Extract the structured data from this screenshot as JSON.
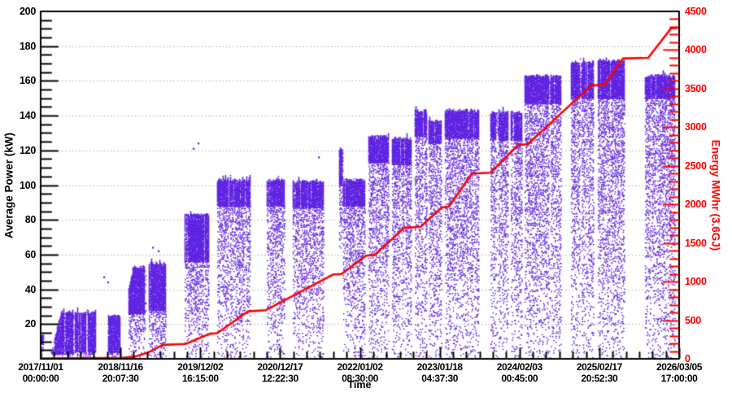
{
  "chart_data": {
    "type": "scatter",
    "title": "",
    "xlabel": "Time",
    "ylabel_left": "Average Power (kW)",
    "ylabel_right": "Energy MWhr (3.6GJ)",
    "grid": {
      "horizontal_dotted": true,
      "vertical": false,
      "color": "#a8a8a8"
    },
    "colors": {
      "scatter": "#5a1ce0",
      "energy_line": "#ff0000",
      "axis": "#000000",
      "right_axis": "#ff0000"
    },
    "x_axis": {
      "minor_divisions_per_interval": 6,
      "ticks": [
        {
          "pos": 0.0,
          "date": "2017/11/01",
          "time": "00:00:00"
        },
        {
          "pos": 0.125,
          "date": "2018/11/16",
          "time": "20:07:30"
        },
        {
          "pos": 0.25,
          "date": "2019/12/02",
          "time": "16:15:00"
        },
        {
          "pos": 0.375,
          "date": "2020/12/17",
          "time": "12:22:30"
        },
        {
          "pos": 0.5,
          "date": "2022/01/02",
          "time": "08:30:00"
        },
        {
          "pos": 0.625,
          "date": "2023/01/18",
          "time": "04:37:30"
        },
        {
          "pos": 0.75,
          "date": "2024/02/03",
          "time": "00:45:00"
        },
        {
          "pos": 0.875,
          "date": "2025/02/17",
          "time": "20:52:30"
        },
        {
          "pos": 1.0,
          "date": "2026/03/05",
          "time": "17:00:00"
        }
      ]
    },
    "y_axis_left": {
      "min": 0,
      "max": 200,
      "major_step": 20,
      "minor_step": 5,
      "tick_values": [
        20,
        40,
        60,
        80,
        100,
        120,
        140,
        160,
        180,
        200
      ],
      "tick_labels": [
        "20",
        "40",
        "60",
        "80",
        "100",
        "120",
        "140",
        "160",
        "180",
        "200"
      ]
    },
    "y_axis_right": {
      "min": 0,
      "max": 4500,
      "major_step": 500,
      "minor_step": 100,
      "tick_values": [
        0,
        500,
        1000,
        1500,
        2000,
        2500,
        3000,
        3500,
        4000,
        4500
      ],
      "tick_labels": [
        "0",
        "500",
        "1000",
        "1500",
        "2000",
        "2500",
        "3000",
        "3500",
        "4000",
        "4500"
      ]
    },
    "band_fields": [
      "x0_frac",
      "x1_frac",
      "top_kw",
      "dense_to_kw",
      "sparse_to_kw",
      "ramp_w_frac",
      "ramp_from_kw"
    ],
    "power_bands": [
      [
        0.0013,
        0.0051,
        14,
        9,
        0,
        0,
        0
      ],
      [
        0.0166,
        0.051,
        27,
        3,
        0,
        0.0153,
        5
      ],
      [
        0.0535,
        0.0701,
        27,
        4,
        0,
        0,
        0
      ],
      [
        0.0726,
        0.0866,
        27,
        4,
        0,
        0,
        0
      ],
      [
        0.1057,
        0.1248,
        25,
        4,
        0,
        0,
        0
      ],
      [
        0.1376,
        0.1529,
        53,
        26,
        0,
        0.0076,
        40
      ],
      [
        0.1541,
        0.1643,
        53,
        26,
        0,
        0,
        0
      ],
      [
        0.1694,
        0.1949,
        55,
        28,
        0,
        0,
        0
      ],
      [
        0.2255,
        0.2637,
        83,
        56,
        0,
        0,
        0
      ],
      [
        0.2764,
        0.293,
        103,
        88,
        0,
        0,
        0
      ],
      [
        0.2955,
        0.3274,
        103,
        88,
        0,
        0,
        0
      ],
      [
        0.3541,
        0.3809,
        103,
        88,
        0,
        0,
        0
      ],
      [
        0.3949,
        0.4433,
        102,
        87,
        0,
        0,
        0
      ],
      [
        0.4675,
        0.4738,
        121,
        100,
        60,
        0,
        0
      ],
      [
        0.4738,
        0.507,
        103,
        88,
        0,
        0,
        0
      ],
      [
        0.5134,
        0.5452,
        128,
        113,
        0,
        0,
        0
      ],
      [
        0.5503,
        0.5796,
        127,
        112,
        0,
        0,
        0
      ],
      [
        0.586,
        0.6051,
        143,
        128,
        0,
        0,
        0
      ],
      [
        0.6076,
        0.6268,
        137,
        124,
        0,
        0,
        0
      ],
      [
        0.6331,
        0.6854,
        143,
        127,
        0,
        0,
        0
      ],
      [
        0.7045,
        0.7325,
        142,
        126,
        0,
        0,
        0
      ],
      [
        0.7363,
        0.7541,
        142,
        126,
        0,
        0,
        0
      ],
      [
        0.758,
        0.8153,
        163,
        147,
        0,
        0,
        0
      ],
      [
        0.8306,
        0.8662,
        171,
        150,
        0,
        0,
        0
      ],
      [
        0.8726,
        0.9146,
        172,
        150,
        0,
        0,
        0
      ],
      [
        0.9465,
        0.9936,
        163,
        150,
        0,
        0,
        0
      ]
    ],
    "outlier_points_kw": [
      [
        0.0994,
        47
      ],
      [
        0.1057,
        44
      ],
      [
        0.1758,
        64
      ],
      [
        0.1847,
        62
      ],
      [
        0.2395,
        121
      ],
      [
        0.2471,
        124
      ],
      [
        0.4357,
        116
      ]
    ],
    "energy_line": {
      "unit": "MWhr",
      "points": [
        [
          0.0,
          5
        ],
        [
          0.1274,
          12
        ],
        [
          0.1465,
          25
        ],
        [
          0.1694,
          85
        ],
        [
          0.1911,
          180
        ],
        [
          0.2268,
          192
        ],
        [
          0.265,
          325
        ],
        [
          0.2764,
          332
        ],
        [
          0.3248,
          615
        ],
        [
          0.3529,
          630
        ],
        [
          0.4573,
          1090
        ],
        [
          0.4713,
          1098
        ],
        [
          0.5096,
          1335
        ],
        [
          0.5236,
          1345
        ],
        [
          0.5694,
          1700
        ],
        [
          0.5949,
          1710
        ],
        [
          0.628,
          1960
        ],
        [
          0.6395,
          1970
        ],
        [
          0.6752,
          2400
        ],
        [
          0.7045,
          2410
        ],
        [
          0.7478,
          2770
        ],
        [
          0.7631,
          2780
        ],
        [
          0.8191,
          3210
        ],
        [
          0.8624,
          3540
        ],
        [
          0.8828,
          3550
        ],
        [
          0.9121,
          3890
        ],
        [
          0.9516,
          3900
        ],
        [
          0.9873,
          4280
        ],
        [
          1.0,
          4290
        ]
      ]
    }
  }
}
